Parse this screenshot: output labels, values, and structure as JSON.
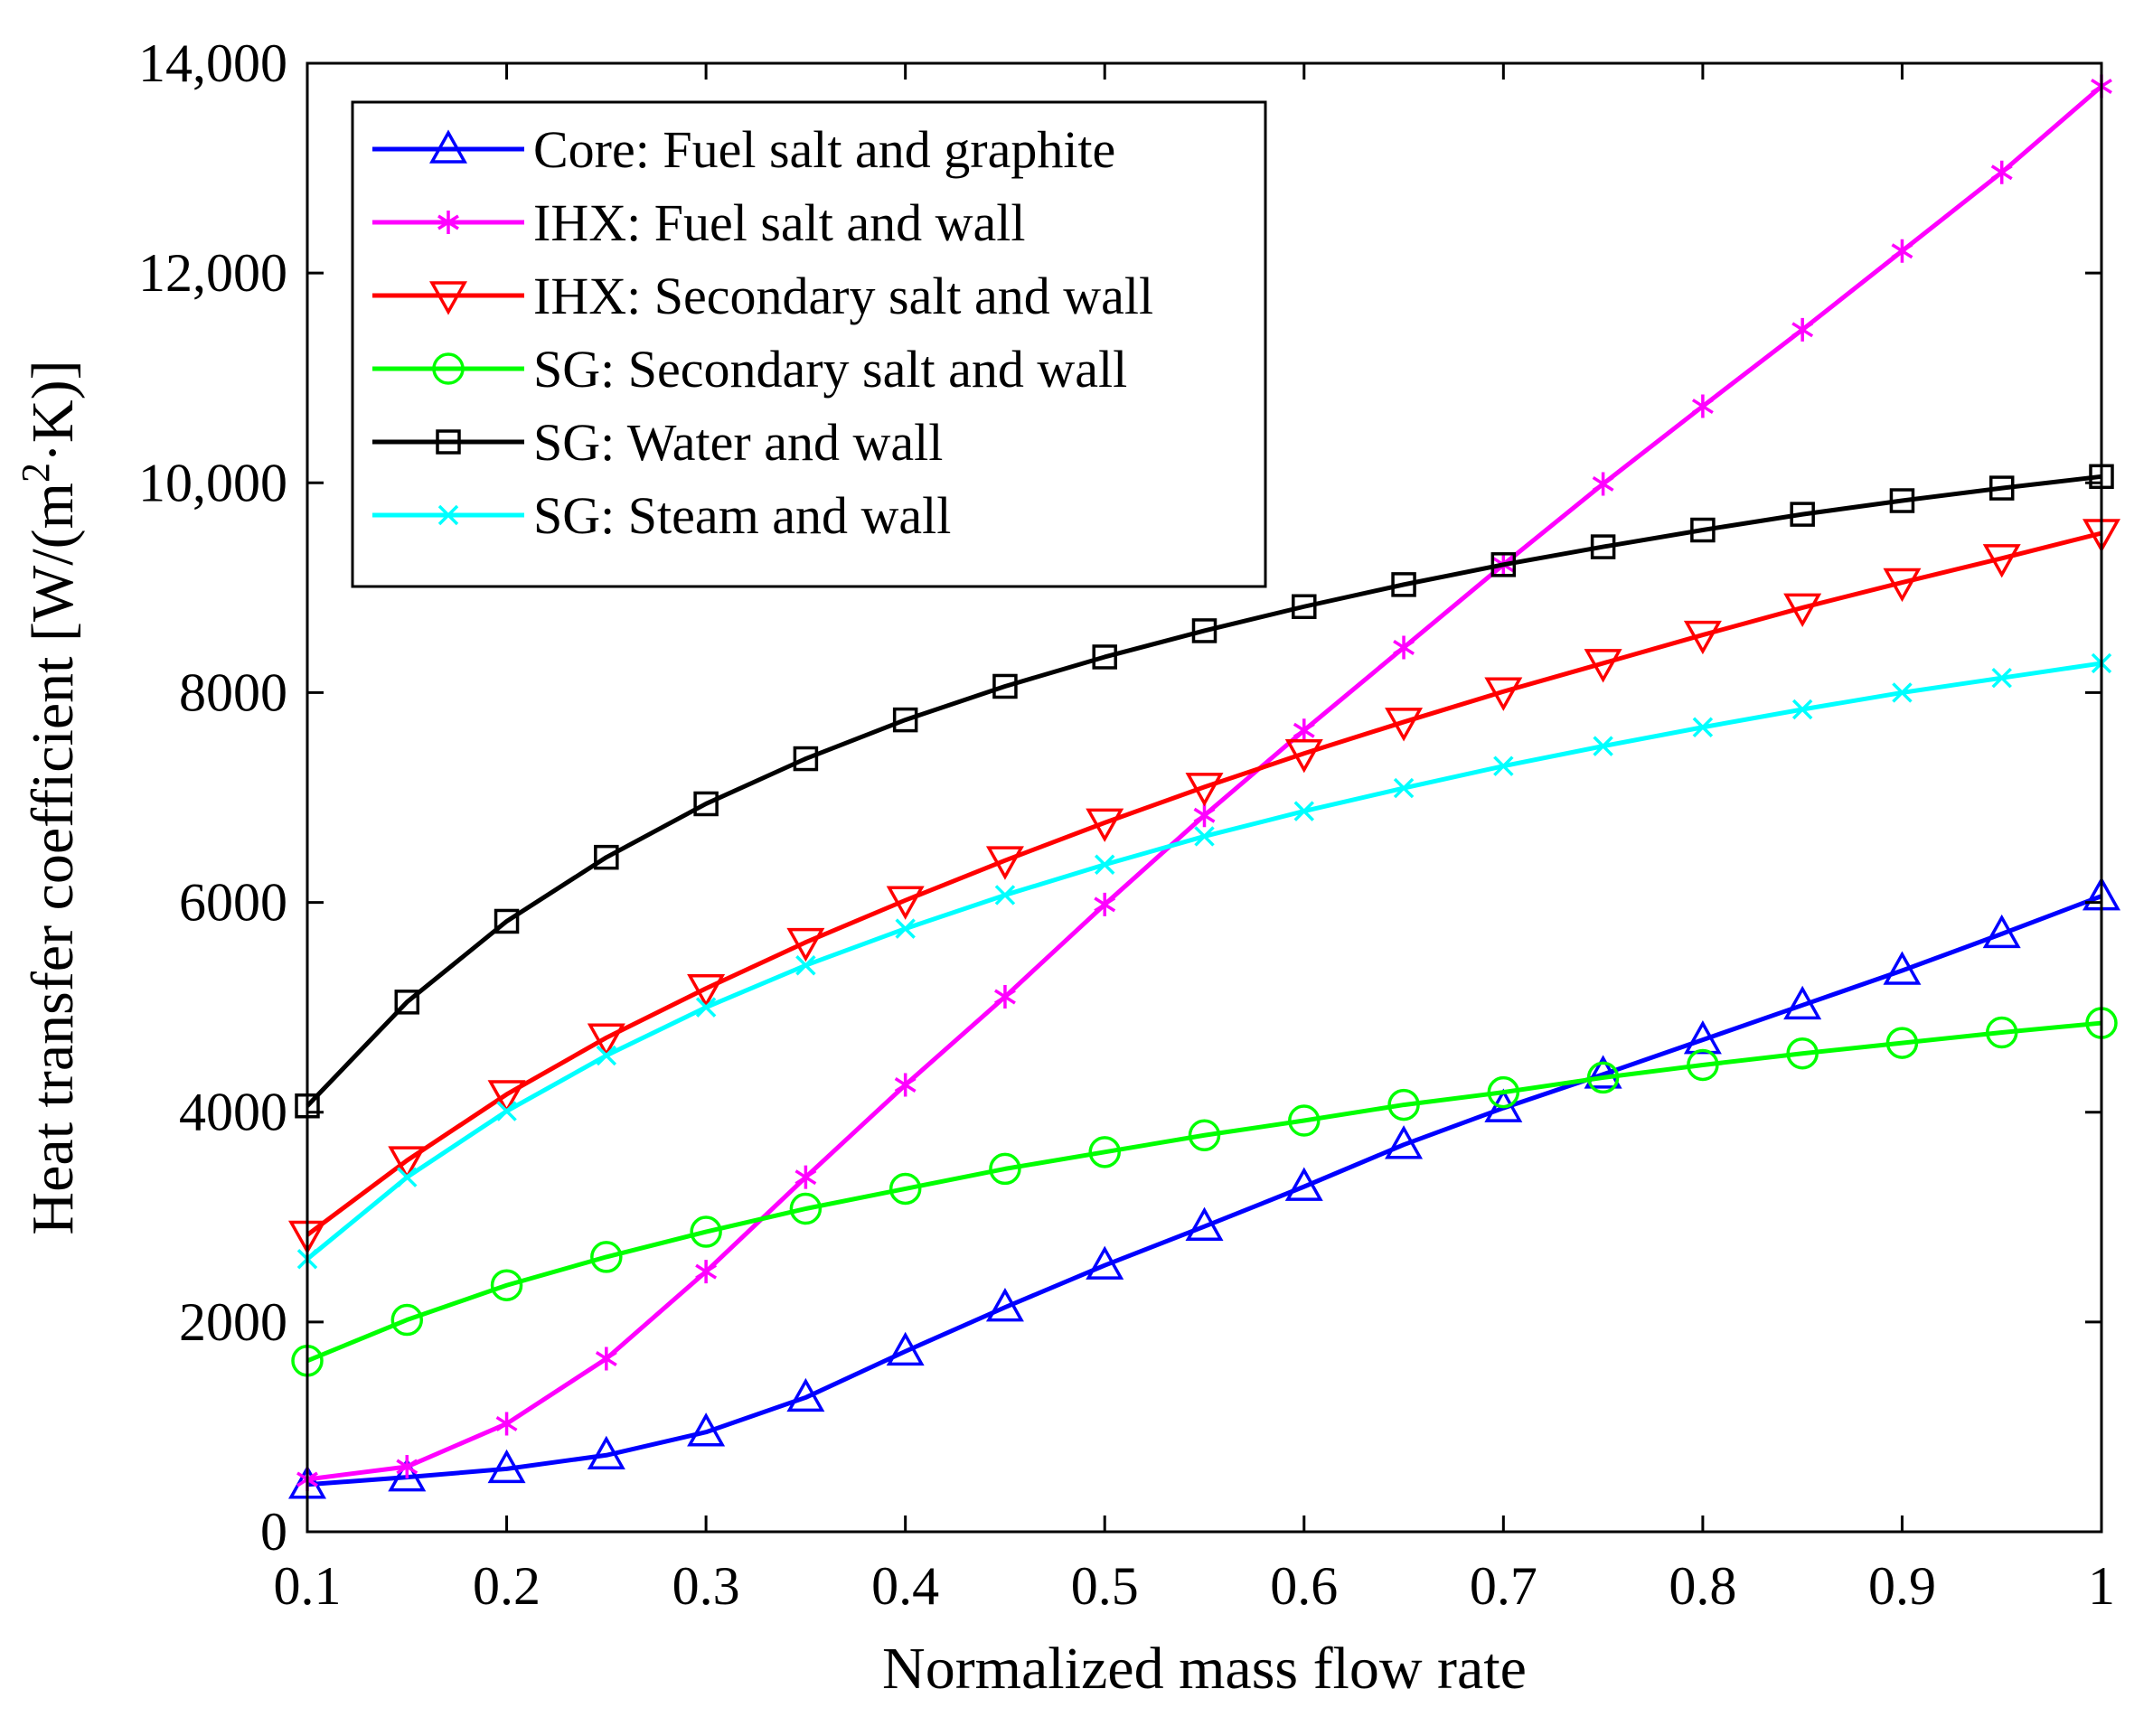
{
  "chart_data": {
    "type": "line",
    "title": "",
    "xlabel": "Normalized mass flow rate",
    "ylabel_main": "Heat transfer coefficient [W/(m",
    "ylabel_sup": "2",
    "ylabel_tail": "·K)]",
    "xlim": [
      0.1,
      1.0
    ],
    "ylim": [
      0,
      14000
    ],
    "xticks": [
      0.1,
      0.2,
      0.3,
      0.4,
      0.5,
      0.6,
      0.7,
      0.8,
      0.9,
      1.0
    ],
    "xtick_labels": [
      "0.1",
      "0.2",
      "0.3",
      "0.4",
      "0.5",
      "0.6",
      "0.7",
      "0.8",
      "0.9",
      "1"
    ],
    "yticks": [
      0,
      2000,
      4000,
      6000,
      8000,
      10000,
      12000,
      14000
    ],
    "ytick_labels": [
      "0",
      "2000",
      "4000",
      "6000",
      "8000",
      "10,000",
      "12,000",
      "14,000"
    ],
    "legend_position": "top-left",
    "x": [
      0.1,
      0.15,
      0.2,
      0.25,
      0.3,
      0.35,
      0.4,
      0.45,
      0.5,
      0.55,
      0.6,
      0.65,
      0.7,
      0.75,
      0.8,
      0.85,
      0.9,
      0.95,
      1.0
    ],
    "series": [
      {
        "name": "Core: Fuel salt and graphite",
        "color": "#0000ff",
        "marker": "triangle-up",
        "values": [
          450,
          520,
          600,
          730,
          950,
          1280,
          1720,
          2140,
          2540,
          2910,
          3290,
          3690,
          4040,
          4360,
          4690,
          5020,
          5350,
          5700,
          6060
        ]
      },
      {
        "name": "IHX: Fuel salt and wall",
        "color": "#ff00ff",
        "marker": "asterisk",
        "values": [
          500,
          620,
          1030,
          1650,
          2480,
          3380,
          4260,
          5100,
          5980,
          6830,
          7640,
          8430,
          9220,
          9990,
          10730,
          11460,
          12210,
          12960,
          13780
        ]
      },
      {
        "name": "IHX: Secondary salt and wall",
        "color": "#ff0000",
        "marker": "triangle-down",
        "values": [
          2830,
          3540,
          4170,
          4710,
          5180,
          5620,
          6020,
          6400,
          6760,
          7100,
          7420,
          7720,
          8010,
          8280,
          8550,
          8810,
          9050,
          9280,
          9520
        ]
      },
      {
        "name": "SG: Secondary salt and wall",
        "color": "#00ff00",
        "marker": "circle",
        "values": [
          1630,
          2020,
          2350,
          2620,
          2860,
          3080,
          3270,
          3460,
          3620,
          3780,
          3920,
          4070,
          4190,
          4330,
          4450,
          4560,
          4660,
          4760,
          4850
        ]
      },
      {
        "name": "SG: Water and wall",
        "color": "#000000",
        "marker": "square",
        "values": [
          4060,
          5050,
          5820,
          6430,
          6940,
          7370,
          7740,
          8060,
          8340,
          8590,
          8820,
          9030,
          9220,
          9390,
          9550,
          9700,
          9830,
          9950,
          10060
        ]
      },
      {
        "name": "SG: Steam and wall",
        "color": "#00ffff",
        "marker": "x",
        "values": [
          2600,
          3380,
          4010,
          4540,
          5000,
          5400,
          5750,
          6070,
          6360,
          6630,
          6870,
          7090,
          7300,
          7490,
          7670,
          7840,
          8000,
          8140,
          8280
        ]
      }
    ]
  }
}
